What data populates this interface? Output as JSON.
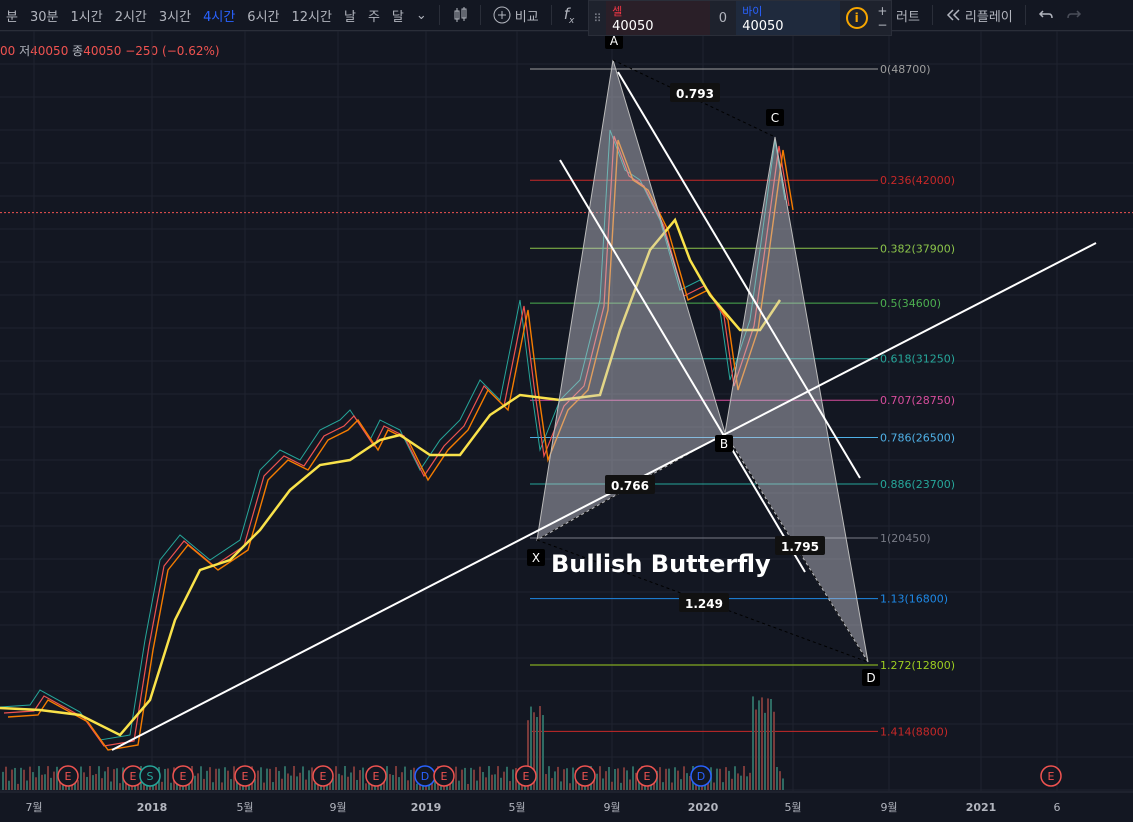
{
  "toolbar": {
    "timeframes": [
      "분",
      "30분",
      "1시간",
      "2시간",
      "3시간",
      "4시간",
      "6시간",
      "12시간",
      "날",
      "주",
      "달"
    ],
    "active_timeframe": "4시간",
    "compare_label": "비교",
    "chart_label": "러트",
    "replay_label": "리플레이"
  },
  "trade": {
    "sell_label": "셀",
    "sell_value": "40050",
    "spread": "0",
    "buy_label": "바이",
    "buy_value": "40050",
    "plus": "+",
    "minus": "−"
  },
  "legend": {
    "prefix": "00",
    "low_label": "저",
    "low": "40050",
    "close_label": "종",
    "close": "40050",
    "change": "−250 (−0.62%)"
  },
  "chart_data": {
    "type": "line",
    "title": "",
    "price_range": [
      5600,
      51300
    ],
    "time_axis_labels": [
      "7월",
      "2018",
      "5월",
      "9월",
      "2019",
      "5월",
      "9월",
      "2020",
      "5월",
      "9월",
      "2021",
      "6"
    ],
    "current_price": 40050,
    "fib_levels": [
      {
        "label": "0(48700)",
        "price": 48700,
        "color": "#9e9e9e"
      },
      {
        "label": "0.236(42000)",
        "price": 42000,
        "color": "#c62828"
      },
      {
        "label": "0.382(37900)",
        "price": 37900,
        "color": "#8bc34a"
      },
      {
        "label": "0.5(34600)",
        "price": 34600,
        "color": "#4caf50"
      },
      {
        "label": "0.618(31250)",
        "price": 31250,
        "color": "#26a69a"
      },
      {
        "label": "0.707(28750)",
        "price": 28750,
        "color": "#d64d9c"
      },
      {
        "label": "0.786(26500)",
        "price": 26500,
        "color": "#4fb0e6"
      },
      {
        "label": "0.886(23700)",
        "price": 23700,
        "color": "#26a69a"
      },
      {
        "label": "1(20450)",
        "price": 20450,
        "color": "#787b86"
      },
      {
        "label": "1.13(16800)",
        "price": 16800,
        "color": "#1e88e5"
      },
      {
        "label": "1.272(12800)",
        "price": 12800,
        "color": "#9ccc20"
      },
      {
        "label": "1.414(8800)",
        "price": 8800,
        "color": "#c62828"
      }
    ],
    "pattern": {
      "name": "Bullish Butterfly",
      "points": [
        {
          "label": "X",
          "price": 20450
        },
        {
          "label": "A",
          "price": 48700
        },
        {
          "label": "B",
          "price": 26500
        },
        {
          "label": "C",
          "price": 45300
        },
        {
          "label": "D",
          "price": 12800
        }
      ],
      "ratios": [
        "0.793",
        "0.766",
        "1.795",
        "1.249"
      ]
    },
    "events": [
      "E",
      "E",
      "S",
      "E",
      "E",
      "E",
      "E",
      "D",
      "E",
      "E",
      "E",
      "E",
      "D",
      "E"
    ]
  }
}
